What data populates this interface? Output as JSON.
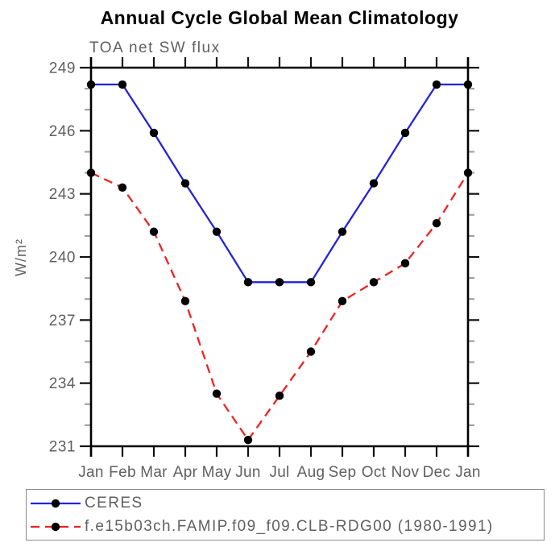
{
  "chart_data": {
    "type": "line",
    "title": "Annual Cycle Global Mean Climatology",
    "subtitle": "TOA net SW flux",
    "ylabel": "W/m²",
    "xlabel": "",
    "categories": [
      "Jan",
      "Feb",
      "Mar",
      "Apr",
      "May",
      "Jun",
      "Jul",
      "Aug",
      "Sep",
      "Oct",
      "Nov",
      "Dec",
      "Jan"
    ],
    "y_axis": {
      "min": 231,
      "max": 249,
      "major_tick_step": 3,
      "minor_tick_step": 1,
      "tick_labels": [
        "231",
        "234",
        "237",
        "240",
        "243",
        "246",
        "249"
      ]
    },
    "grid": false,
    "legend_position": "bottom",
    "marker": "filled-circle",
    "marker_color": "#000000",
    "series": [
      {
        "name": "CERES",
        "color": "#2424d6",
        "line_style": "solid",
        "values": [
          248.2,
          248.2,
          245.9,
          243.5,
          241.2,
          238.8,
          238.8,
          238.8,
          241.2,
          243.5,
          245.9,
          248.2,
          248.2
        ]
      },
      {
        "name": "f.e15b03ch.FAMIP.f09_f09.CLB-RDG00 (1980-1991)",
        "color": "#ee2222",
        "line_style": "dashed",
        "values": [
          244.0,
          243.3,
          241.2,
          237.9,
          233.5,
          231.3,
          233.4,
          235.5,
          237.9,
          238.8,
          239.7,
          241.6,
          244.0
        ]
      }
    ],
    "style_colors": {
      "axis": "#000000",
      "major_tick": "#111111",
      "minor_tick": "#9a9a9a",
      "tick_label": "#606060",
      "title": "#000000",
      "subtitle": "#606060",
      "legend_border": "#8a8a8a",
      "background": "#ffffff"
    }
  }
}
